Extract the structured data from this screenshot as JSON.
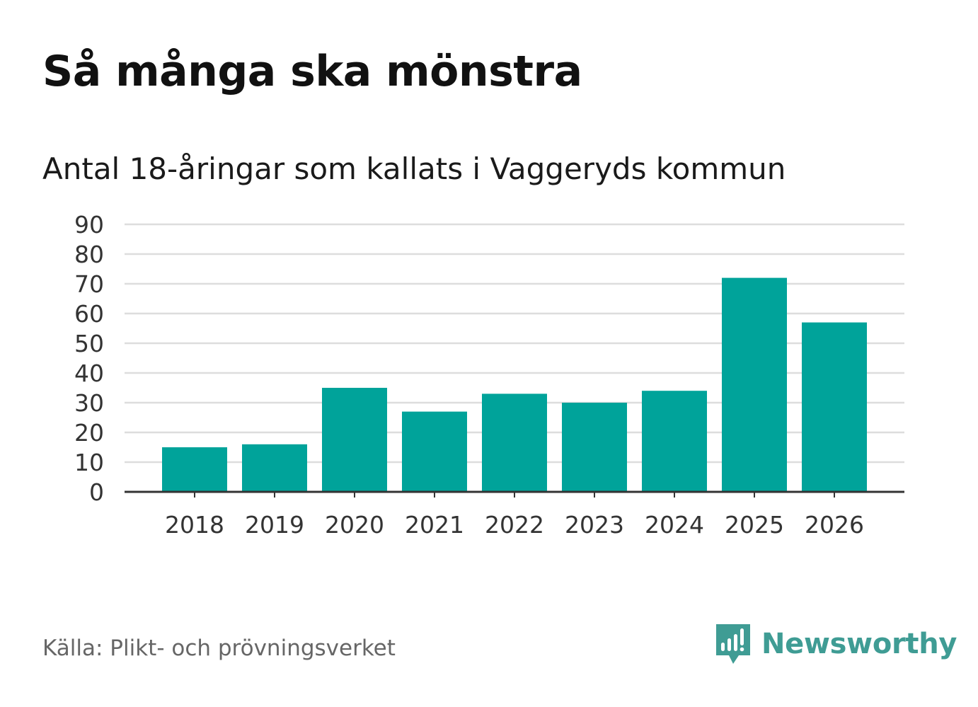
{
  "header": {
    "title": "Så många ska mönstra",
    "subtitle": "Antal 18-åringar som kallats i Vaggeryds kommun"
  },
  "footer": {
    "source": "Källa: Plikt- och prövningsverket",
    "brand": "Newsworthy",
    "brand_icon": "newsworthy-chart-icon"
  },
  "colors": {
    "bar": "#00a39a",
    "grid": "#dddddd",
    "axis": "#333333",
    "tick_text": "#333333",
    "brand": "#3f9c94"
  },
  "chart_data": {
    "type": "bar",
    "title": "Så många ska mönstra",
    "subtitle": "Antal 18-åringar som kallats i Vaggeryds kommun",
    "categories": [
      "2018",
      "2019",
      "2020",
      "2021",
      "2022",
      "2023",
      "2024",
      "2025",
      "2026"
    ],
    "values": [
      15,
      16,
      35,
      27,
      33,
      30,
      34,
      72,
      57
    ],
    "ylim": [
      0,
      90
    ],
    "yticks": [
      0,
      10,
      20,
      30,
      40,
      50,
      60,
      70,
      80,
      90
    ],
    "xlabel": "",
    "ylabel": "",
    "grid": true
  }
}
